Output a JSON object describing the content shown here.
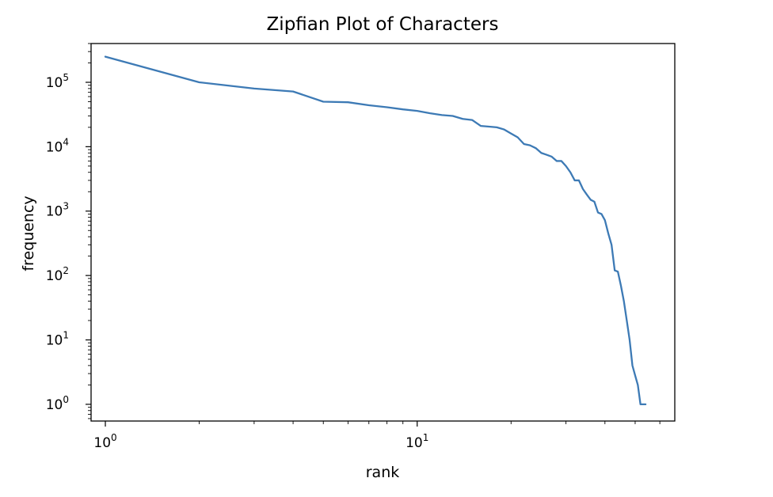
{
  "chart_data": {
    "type": "line",
    "title": "Zipfian Plot of Characters",
    "xlabel": "rank",
    "ylabel": "frequency",
    "xscale": "log",
    "yscale": "log",
    "xlim": [
      0.9,
      67
    ],
    "ylim": [
      0.55,
      400000
    ],
    "grid": false,
    "x_ticks": [
      {
        "base": "10",
        "exp": "0",
        "value": 1
      },
      {
        "base": "10",
        "exp": "1",
        "value": 10
      }
    ],
    "y_ticks": [
      {
        "base": "10",
        "exp": "0",
        "value": 1
      },
      {
        "base": "10",
        "exp": "1",
        "value": 10
      },
      {
        "base": "10",
        "exp": "2",
        "value": 100
      },
      {
        "base": "10",
        "exp": "3",
        "value": 1000
      },
      {
        "base": "10",
        "exp": "4",
        "value": 10000
      },
      {
        "base": "10",
        "exp": "5",
        "value": 100000
      }
    ],
    "series": [
      {
        "color": "#3d7ab5",
        "x": [
          1,
          2,
          3,
          4,
          5,
          6,
          7,
          8,
          9,
          10,
          11,
          12,
          13,
          14,
          15,
          16,
          17,
          18,
          19,
          20,
          21,
          22,
          23,
          24,
          25,
          26,
          27,
          28,
          29,
          30,
          31,
          32,
          33,
          34,
          35,
          36,
          37,
          38,
          39,
          40,
          41,
          42,
          43,
          44,
          45,
          46,
          47,
          48,
          49,
          50,
          51,
          52,
          53,
          54
        ],
        "y": [
          250000,
          100000,
          80000,
          72000,
          50000,
          49000,
          44000,
          41000,
          38000,
          36000,
          33000,
          31000,
          30000,
          27000,
          26000,
          21000,
          20500,
          20000,
          18500,
          16000,
          14000,
          11000,
          10500,
          9500,
          8000,
          7500,
          7000,
          6000,
          6000,
          5000,
          4000,
          3000,
          3000,
          2200,
          1800,
          1500,
          1400,
          950,
          900,
          720,
          450,
          300,
          120,
          115,
          70,
          40,
          20,
          10,
          4,
          2.8,
          2,
          1,
          1,
          1
        ]
      }
    ]
  }
}
